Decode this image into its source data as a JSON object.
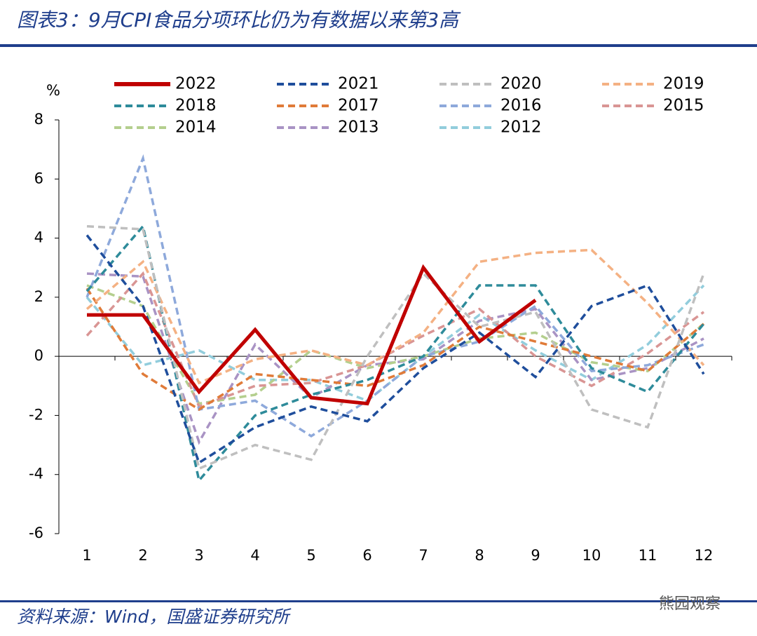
{
  "chart_data": {
    "type": "line",
    "title": "图表3：9月CPI食品分项环比仍为有数据以来第3高",
    "y_unit": "%",
    "source": "资料来源：Wind，国盛证券研究所",
    "watermark": "熊园观察",
    "categories": [
      "1",
      "2",
      "3",
      "4",
      "5",
      "6",
      "7",
      "8",
      "9",
      "10",
      "11",
      "12"
    ],
    "ylim": [
      -6,
      8
    ],
    "yticks": [
      -6,
      -4,
      -2,
      0,
      2,
      4,
      6,
      8
    ],
    "series": [
      {
        "name": "2022",
        "color": "#c00000",
        "line_style": "solid",
        "values": [
          1.4,
          1.4,
          -1.2,
          0.9,
          -1.4,
          -1.6,
          3.0,
          0.5,
          1.9,
          null,
          null,
          null
        ]
      },
      {
        "name": "2021",
        "color": "#1f4e9c",
        "line_style": "dashed",
        "values": [
          4.1,
          1.7,
          -3.6,
          -2.4,
          -1.7,
          -2.2,
          -0.4,
          0.8,
          -0.7,
          1.7,
          2.4,
          -0.6
        ]
      },
      {
        "name": "2020",
        "color": "#bfbfbf",
        "line_style": "dashed",
        "values": [
          4.4,
          4.3,
          -3.8,
          -3.0,
          -3.5,
          0.0,
          2.8,
          1.0,
          1.5,
          -1.8,
          -2.4,
          2.8
        ]
      },
      {
        "name": "2019",
        "color": "#f4b183",
        "line_style": "dashed",
        "values": [
          1.6,
          3.2,
          -0.9,
          -0.1,
          0.2,
          -0.3,
          0.8,
          3.2,
          3.5,
          3.6,
          1.8,
          -0.3
        ]
      },
      {
        "name": "2018",
        "color": "#2e8b9a",
        "line_style": "dashed",
        "values": [
          2.2,
          4.4,
          -4.2,
          -2.0,
          -1.3,
          -0.8,
          0.0,
          2.4,
          2.4,
          -0.4,
          -1.2,
          1.1
        ]
      },
      {
        "name": "2017",
        "color": "#e07b39",
        "line_style": "dashed",
        "values": [
          2.3,
          -0.6,
          -1.8,
          -0.6,
          -0.8,
          -1.0,
          -0.3,
          1.0,
          0.5,
          0.0,
          -0.5,
          1.1
        ]
      },
      {
        "name": "2016",
        "color": "#8ea9db",
        "line_style": "dashed",
        "values": [
          2.0,
          6.7,
          -1.8,
          -1.5,
          -2.7,
          -1.5,
          0.0,
          0.5,
          1.7,
          -0.5,
          -0.3,
          0.4
        ]
      },
      {
        "name": "2015",
        "color": "#d99594",
        "line_style": "dashed",
        "values": [
          0.7,
          2.8,
          -1.7,
          -1.0,
          -0.9,
          -0.3,
          0.7,
          1.6,
          0.0,
          -1.0,
          0.1,
          1.5
        ]
      },
      {
        "name": "2014",
        "color": "#b4cf8e",
        "line_style": "dashed",
        "values": [
          2.4,
          1.7,
          -1.6,
          -1.3,
          0.2,
          -0.4,
          0.0,
          0.6,
          0.8,
          -0.2,
          -0.5,
          1.1
        ]
      },
      {
        "name": "2013",
        "color": "#a993c4",
        "line_style": "dashed",
        "values": [
          2.8,
          2.7,
          -2.9,
          0.4,
          -1.4,
          -0.3,
          -0.1,
          1.2,
          1.6,
          -0.8,
          -0.4,
          0.6
        ]
      },
      {
        "name": "2012",
        "color": "#92cddc",
        "line_style": "dashed",
        "values": [
          2.0,
          -0.3,
          0.2,
          -0.8,
          -0.8,
          -1.5,
          0.0,
          1.4,
          0.2,
          -0.8,
          0.4,
          2.4
        ]
      }
    ]
  }
}
